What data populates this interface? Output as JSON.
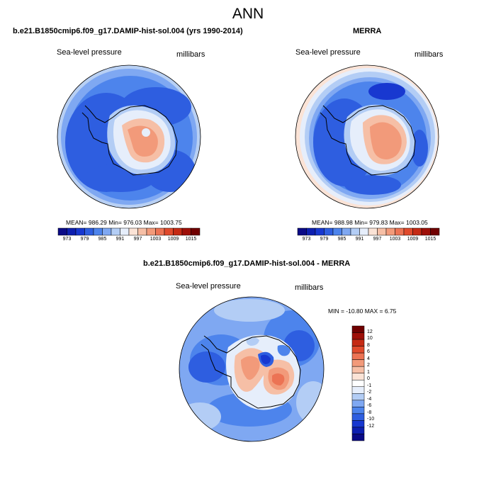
{
  "figure": {
    "title": "ANN",
    "panels": [
      {
        "id": "model",
        "title": "b.e21.B1850cmip6.f09_g17.DAMIP-hist-sol.004 (yrs 1990-2014)",
        "variable": "Sea-level pressure",
        "units": "millibars",
        "stats": "MEAN= 986.29   Min= 976.03   Max= 1003.75"
      },
      {
        "id": "obs",
        "title": "MERRA",
        "variable": "Sea-level pressure",
        "units": "millibars",
        "stats": "MEAN= 988.98   Min= 979.83   Max= 1003.05"
      },
      {
        "id": "diff",
        "title": "b.e21.B1850cmip6.f09_g17.DAMIP-hist-sol.004 - MERRA",
        "variable": "Sea-level pressure",
        "units": "millibars",
        "stats": "MIN = -10.80  MAX =   6.75"
      }
    ],
    "abs_colorbar": {
      "labels": [
        "973",
        "979",
        "985",
        "991",
        "997",
        "1003",
        "1009",
        "1015"
      ],
      "colors": [
        "#0a0a86",
        "#0d1fb0",
        "#1838d0",
        "#2e5ee0",
        "#4d84ec",
        "#7fa8f2",
        "#b3cdf5",
        "#e6eefb",
        "#fbe3d6",
        "#f6bfa6",
        "#f29a7a",
        "#ec7354",
        "#e04a2c",
        "#c52a14",
        "#9e0f08",
        "#700000"
      ]
    },
    "diff_colorbar": {
      "labels": [
        "12",
        "10",
        "8",
        "6",
        "4",
        "2",
        "1",
        "0",
        "-1",
        "-2",
        "-4",
        "-6",
        "-8",
        "-10",
        "-12"
      ],
      "colors": [
        "#700000",
        "#9e0f08",
        "#c52a14",
        "#e04a2c",
        "#ec7354",
        "#f29a7a",
        "#f6bfa6",
        "#fbe3d6",
        "#ffffff",
        "#e6eefb",
        "#b3cdf5",
        "#7fa8f2",
        "#4d84ec",
        "#2e5ee0",
        "#1838d0",
        "#0d1fb0",
        "#0a0a86"
      ]
    }
  }
}
